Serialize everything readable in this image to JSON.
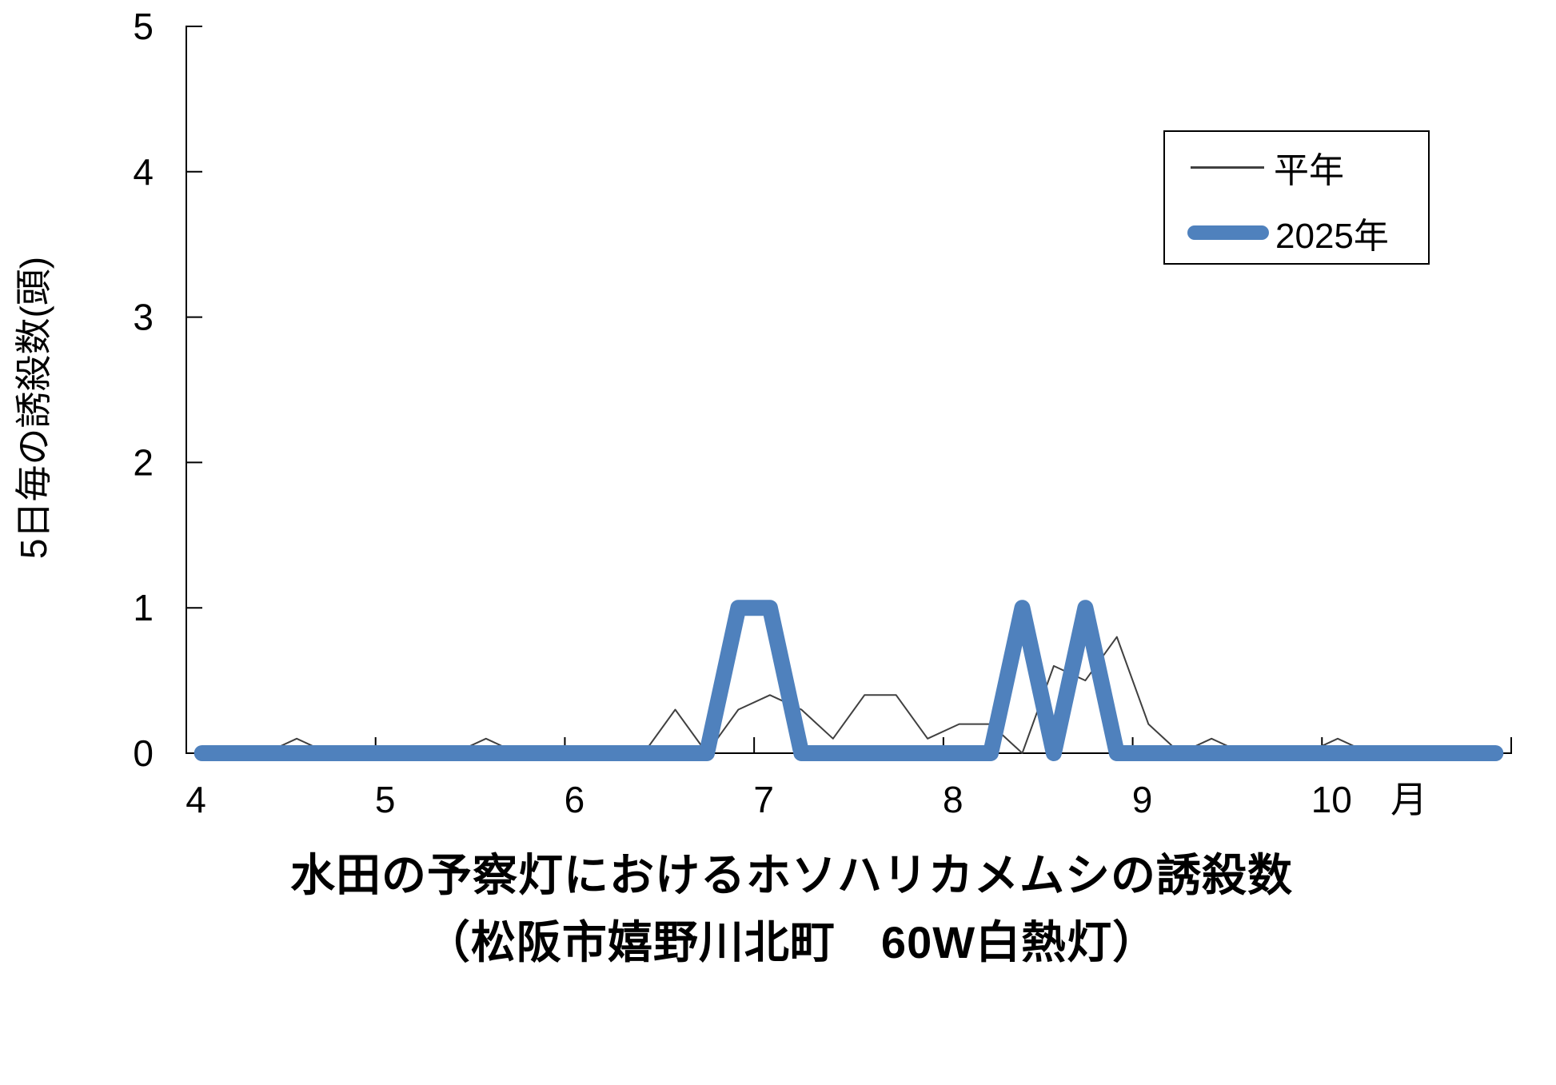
{
  "chart_data": {
    "type": "line",
    "title": "水田の予察灯におけるホソハリカメムシの誘殺数",
    "subtitle": "（松阪市嬉野川北町　60W白熱灯）",
    "ylabel": "5日毎の誘殺数(頭)",
    "xlabel": "月",
    "x_tick_labels": [
      "4",
      "5",
      "6",
      "7",
      "8",
      "9",
      "10"
    ],
    "x_axis_note": "42 five-day periods (6 per month), April through October; points centered in each period slot",
    "y_ticks": [
      0,
      1,
      2,
      3,
      4,
      5
    ],
    "ylim": [
      0,
      5
    ],
    "grid": false,
    "legend_position": "upper-right",
    "axis_color": "#000000",
    "background_color": "#ffffff",
    "series": [
      {
        "name": "平年",
        "color": "#404040",
        "stroke_width": 2,
        "values": [
          0,
          0,
          0,
          0.1,
          0,
          0,
          0,
          0,
          0,
          0.1,
          0,
          0,
          0,
          0,
          0,
          0.3,
          0,
          0.3,
          0.4,
          0.3,
          0.1,
          0.4,
          0.4,
          0.1,
          0.2,
          0.2,
          0,
          0.6,
          0.5,
          0.8,
          0.2,
          0,
          0.1,
          0,
          0,
          0,
          0.1,
          0,
          0,
          0,
          0,
          0
        ]
      },
      {
        "name": "2025年",
        "color": "#4F81BD",
        "stroke_width": 20,
        "values": [
          0,
          0,
          0,
          0,
          0,
          0,
          0,
          0,
          0,
          0,
          0,
          0,
          0,
          0,
          0,
          0,
          0,
          1,
          1,
          0,
          0,
          0,
          0,
          0,
          0,
          0,
          1,
          0,
          1,
          0,
          0,
          0,
          0,
          0,
          0,
          0,
          0,
          0,
          0,
          0,
          0,
          0
        ]
      }
    ]
  },
  "legend": {
    "item1": "平年",
    "item2": "2025年"
  }
}
